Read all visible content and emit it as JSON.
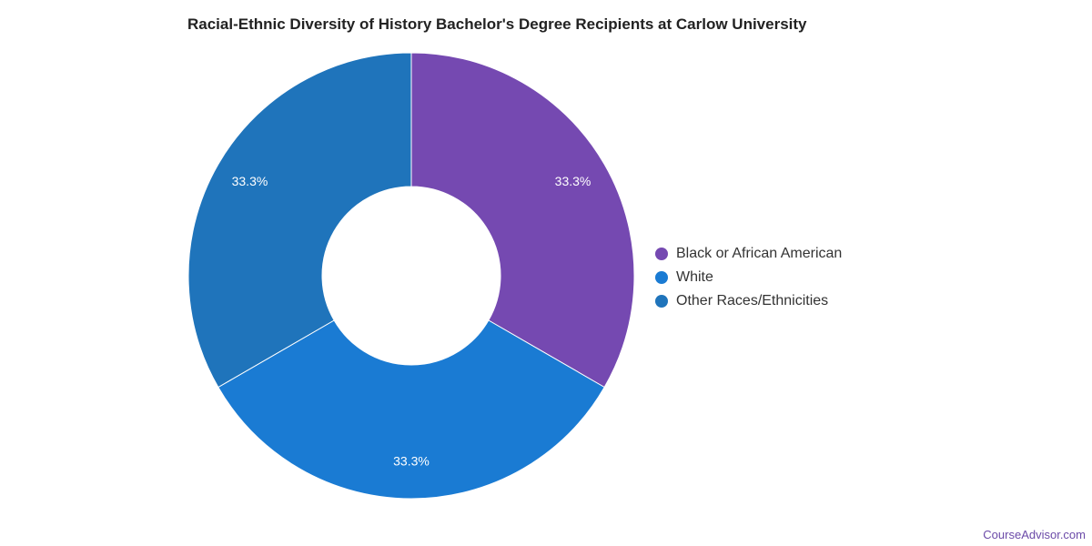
{
  "chart_data": {
    "type": "pie",
    "title": "Racial-Ethnic Diversity of History Bachelor's Degree Recipients at Carlow University",
    "donut": true,
    "categories": [
      "Black or African American",
      "White",
      "Other Races/Ethnicities"
    ],
    "values": [
      33.3,
      33.3,
      33.3
    ],
    "labels": [
      "33.3%",
      "33.3%",
      "33.3%"
    ],
    "colors": [
      "#7549b1",
      "#1a7bd3",
      "#1f74bb"
    ],
    "legend_position": "right"
  },
  "credit": "CourseAdvisor.com"
}
